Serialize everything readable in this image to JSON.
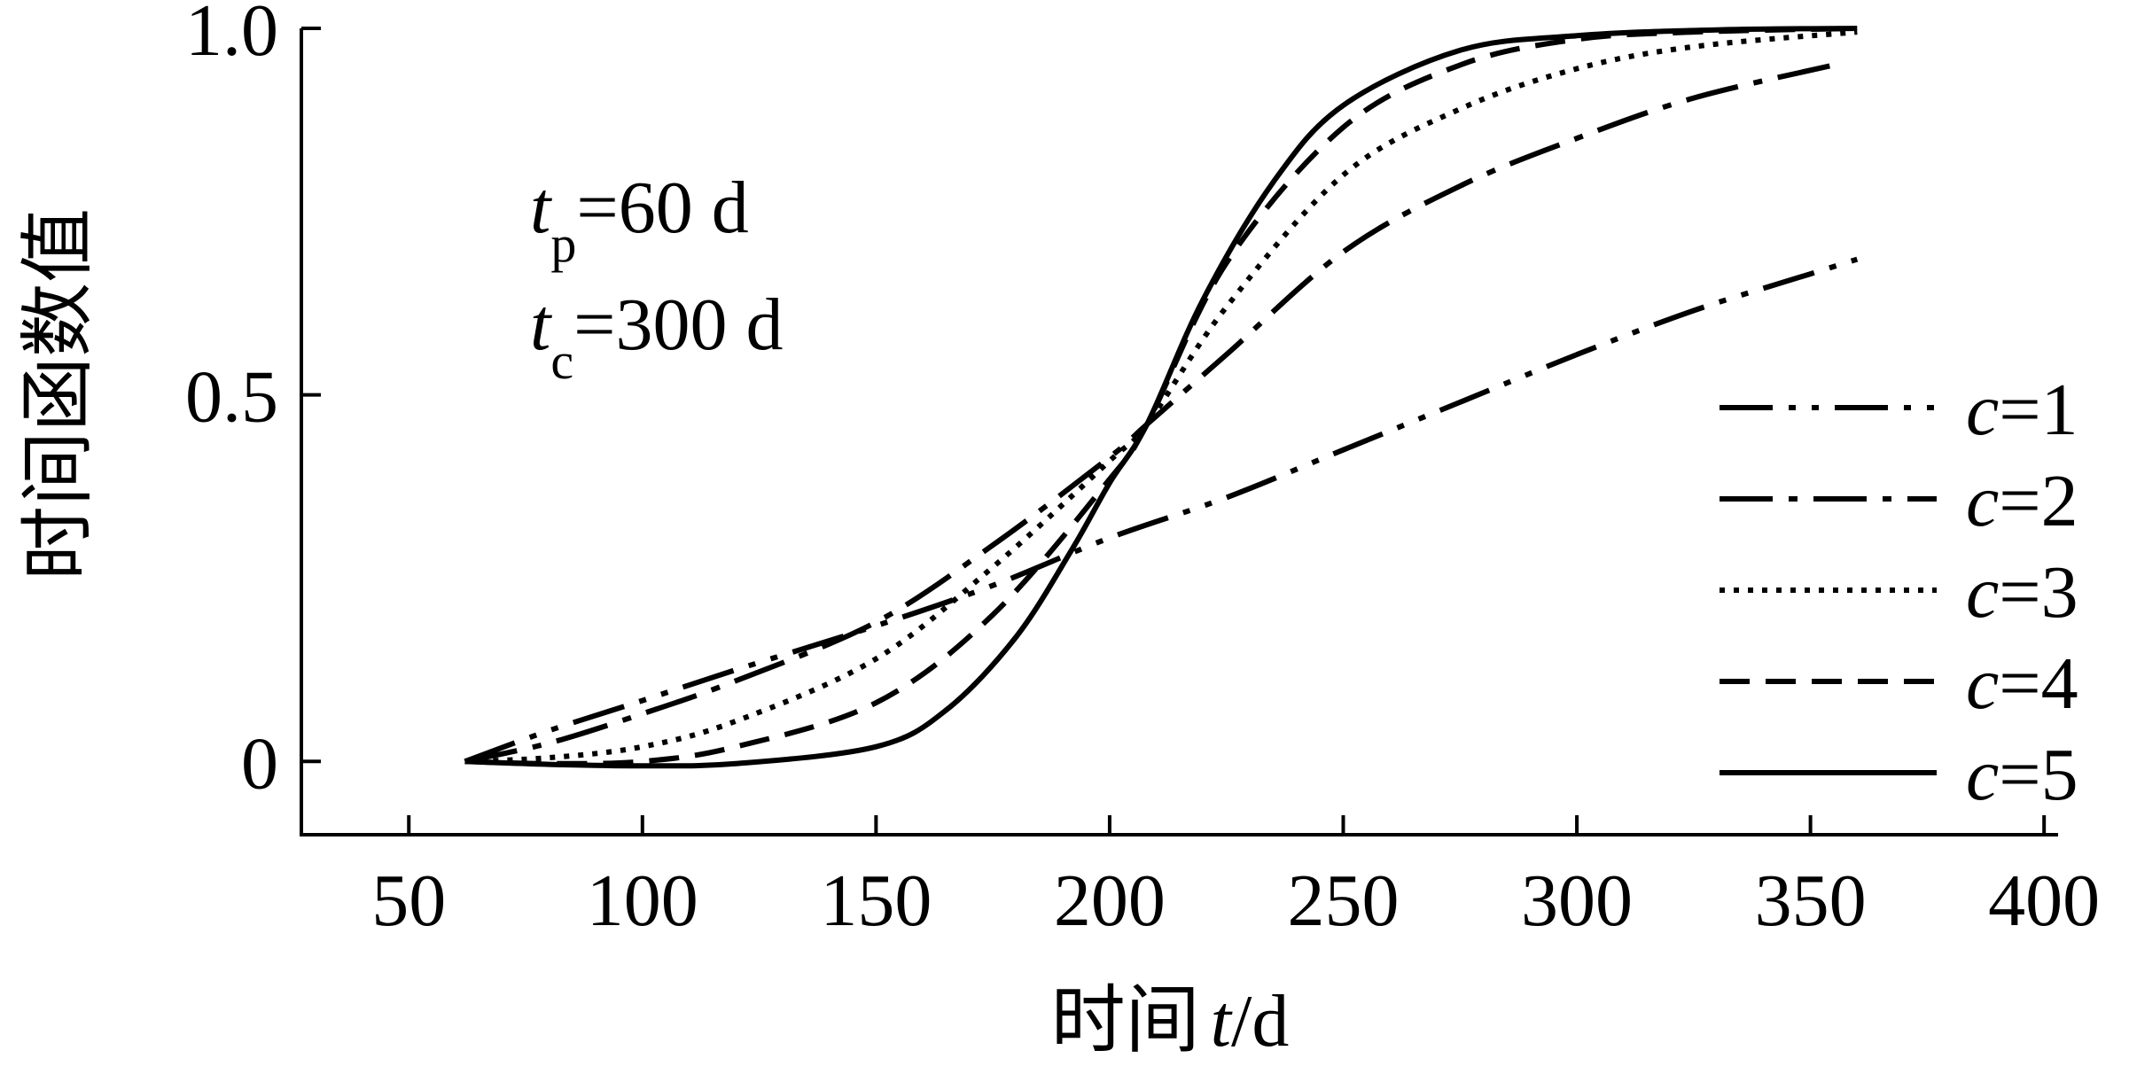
{
  "chart_data": {
    "type": "line",
    "title": "",
    "xlabel": {
      "prefix": "时间",
      "var": "t",
      "unit": "/d"
    },
    "ylabel": "时间函数值",
    "xlim": [
      27,
      403
    ],
    "ylim": [
      -0.1,
      1.0
    ],
    "x_ticks": [
      50,
      100,
      150,
      200,
      250,
      300,
      350,
      400
    ],
    "x_tick_labels": [
      "50",
      "100",
      "150",
      "200",
      "250",
      "300",
      "350",
      "400"
    ],
    "y_ticks": [
      0,
      0.5,
      1.0
    ],
    "y_tick_labels": [
      "0",
      "0.5",
      "1.0"
    ],
    "grid": false,
    "legend_position": "right",
    "annotations": [
      {
        "var": "t",
        "sub": "p",
        "rest": "=60 d"
      },
      {
        "var": "t",
        "sub": "c",
        "rest": "=300 d"
      }
    ],
    "series": [
      {
        "name": "c=1",
        "label_var": "c",
        "label_rest": "=1",
        "dash": [
          60,
          18,
          8,
          18,
          8,
          18
        ],
        "x": [
          62,
          80,
          100,
          120,
          150,
          175,
          200,
          225,
          250,
          275,
          300,
          325,
          350,
          360
        ],
        "y": [
          0,
          0.042,
          0.083,
          0.125,
          0.185,
          0.24,
          0.305,
          0.36,
          0.425,
          0.49,
          0.555,
          0.615,
          0.665,
          0.685
        ]
      },
      {
        "name": "c=2",
        "label_var": "c",
        "label_rest": "=2",
        "dash": [
          60,
          18,
          10,
          18
        ],
        "x": [
          62,
          80,
          100,
          120,
          150,
          175,
          200,
          208,
          225,
          250,
          275,
          300,
          325,
          355
        ],
        "y": [
          0,
          0.025,
          0.065,
          0.11,
          0.19,
          0.295,
          0.415,
          0.46,
          0.555,
          0.695,
          0.785,
          0.85,
          0.905,
          0.95
        ]
      },
      {
        "name": "c=3",
        "label_var": "c",
        "label_rest": "=3",
        "dash": [
          6,
          10
        ],
        "x": [
          62,
          80,
          100,
          120,
          150,
          175,
          200,
          208,
          225,
          250,
          275,
          300,
          325,
          360
        ],
        "y": [
          0,
          0.005,
          0.02,
          0.055,
          0.14,
          0.265,
          0.41,
          0.46,
          0.62,
          0.8,
          0.89,
          0.945,
          0.975,
          0.995
        ]
      },
      {
        "name": "c=4",
        "label_var": "c",
        "label_rest": "=4",
        "dash": [
          34,
          18
        ],
        "x": [
          62,
          80,
          100,
          120,
          150,
          175,
          200,
          208,
          225,
          250,
          275,
          300,
          325,
          360
        ],
        "y": [
          0,
          -0.003,
          0.0,
          0.02,
          0.08,
          0.2,
          0.385,
          0.46,
          0.68,
          0.865,
          0.95,
          0.985,
          0.995,
          1.0
        ]
      },
      {
        "name": "c=5",
        "label_var": "c",
        "label_rest": "=5",
        "dash": [],
        "x": [
          62,
          80,
          100,
          120,
          150,
          165,
          180,
          192,
          200,
          208,
          220,
          235,
          250,
          275,
          300,
          330,
          360
        ],
        "y": [
          0,
          -0.004,
          -0.006,
          -0.003,
          0.02,
          0.07,
          0.17,
          0.29,
          0.38,
          0.46,
          0.63,
          0.79,
          0.895,
          0.97,
          0.99,
          0.998,
          1.0
        ]
      }
    ]
  }
}
